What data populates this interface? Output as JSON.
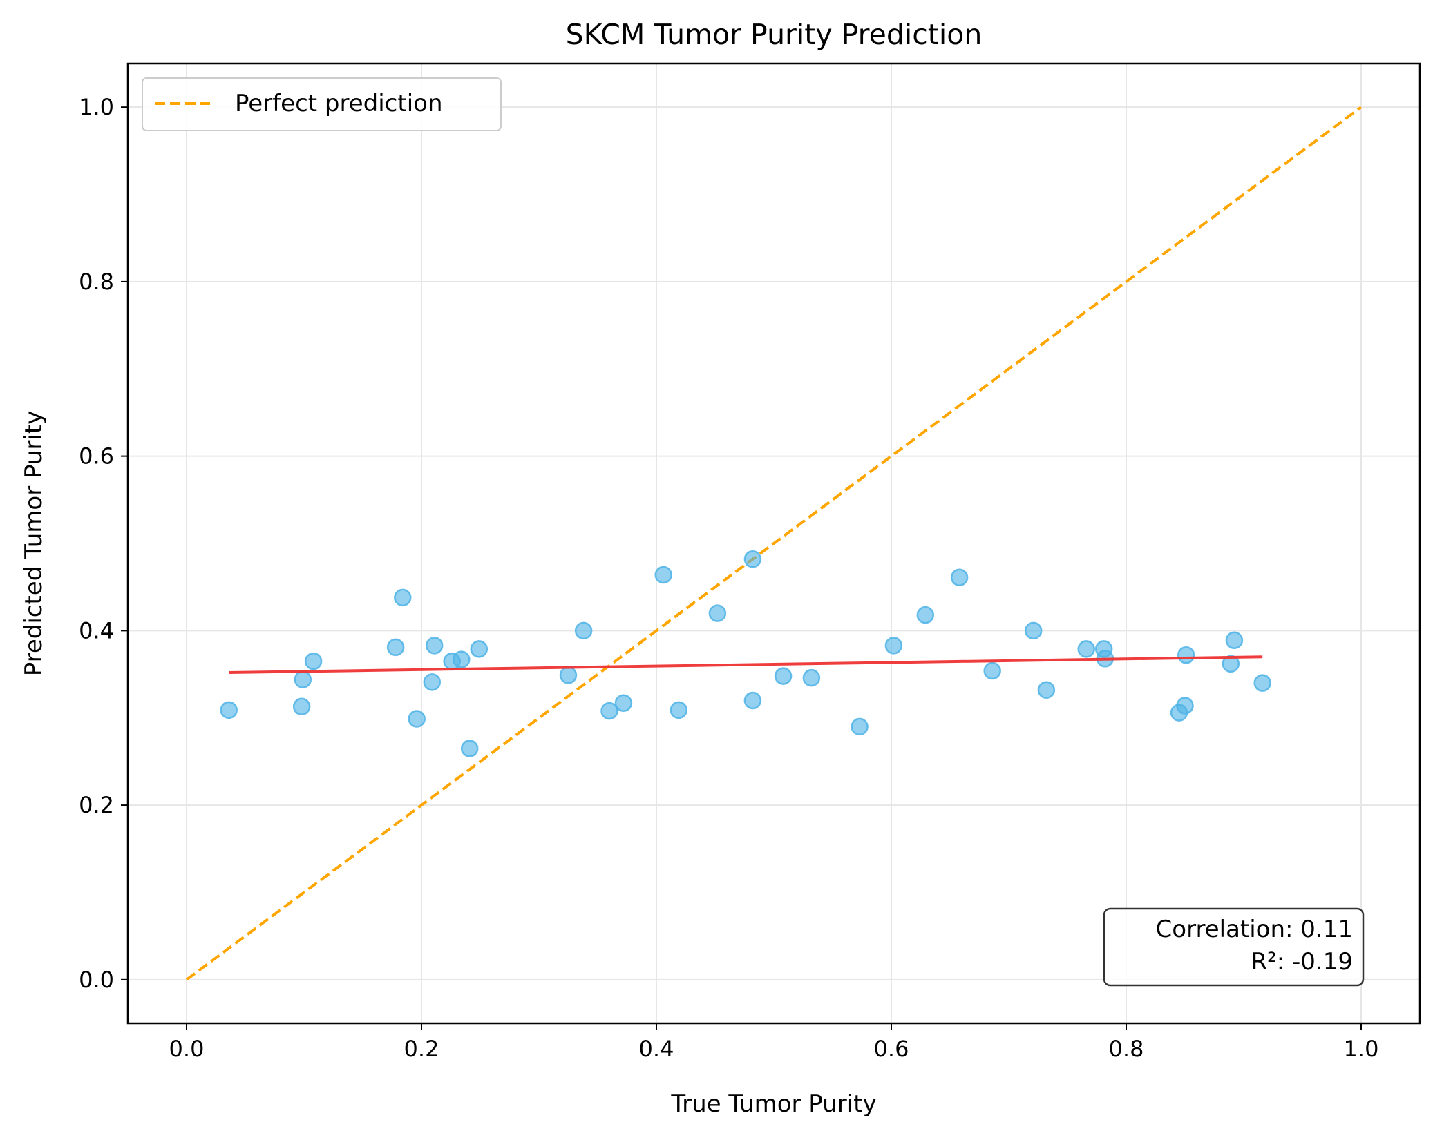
{
  "chart_data": {
    "type": "scatter",
    "title": "SKCM Tumor Purity Prediction",
    "xlabel": "True Tumor Purity",
    "ylabel": "Predicted Tumor Purity",
    "xlim": [
      -0.05,
      1.05
    ],
    "ylim": [
      -0.05,
      1.05
    ],
    "x_ticks": [
      0.0,
      0.2,
      0.4,
      0.6,
      0.8,
      1.0
    ],
    "y_ticks": [
      0.0,
      0.2,
      0.4,
      0.6,
      0.8,
      1.0
    ],
    "x_tick_labels": [
      "0.0",
      "0.2",
      "0.4",
      "0.6",
      "0.8",
      "1.0"
    ],
    "y_tick_labels": [
      "0.0",
      "0.2",
      "0.4",
      "0.6",
      "0.8",
      "1.0"
    ],
    "grid": true,
    "legend": {
      "position": "upper-left",
      "entries": [
        "Perfect prediction"
      ]
    },
    "points": [
      {
        "x": 0.036,
        "y": 0.309
      },
      {
        "x": 0.098,
        "y": 0.313
      },
      {
        "x": 0.099,
        "y": 0.344
      },
      {
        "x": 0.108,
        "y": 0.365
      },
      {
        "x": 0.178,
        "y": 0.381
      },
      {
        "x": 0.184,
        "y": 0.438
      },
      {
        "x": 0.196,
        "y": 0.299
      },
      {
        "x": 0.209,
        "y": 0.341
      },
      {
        "x": 0.211,
        "y": 0.383
      },
      {
        "x": 0.226,
        "y": 0.365
      },
      {
        "x": 0.234,
        "y": 0.367
      },
      {
        "x": 0.241,
        "y": 0.265
      },
      {
        "x": 0.249,
        "y": 0.379
      },
      {
        "x": 0.325,
        "y": 0.349
      },
      {
        "x": 0.338,
        "y": 0.4
      },
      {
        "x": 0.36,
        "y": 0.308
      },
      {
        "x": 0.372,
        "y": 0.317
      },
      {
        "x": 0.406,
        "y": 0.464
      },
      {
        "x": 0.419,
        "y": 0.309
      },
      {
        "x": 0.452,
        "y": 0.42
      },
      {
        "x": 0.482,
        "y": 0.482
      },
      {
        "x": 0.482,
        "y": 0.32
      },
      {
        "x": 0.508,
        "y": 0.348
      },
      {
        "x": 0.532,
        "y": 0.346
      },
      {
        "x": 0.573,
        "y": 0.29
      },
      {
        "x": 0.602,
        "y": 0.383
      },
      {
        "x": 0.629,
        "y": 0.418
      },
      {
        "x": 0.658,
        "y": 0.461
      },
      {
        "x": 0.686,
        "y": 0.354
      },
      {
        "x": 0.721,
        "y": 0.4
      },
      {
        "x": 0.732,
        "y": 0.332
      },
      {
        "x": 0.766,
        "y": 0.379
      },
      {
        "x": 0.781,
        "y": 0.379
      },
      {
        "x": 0.782,
        "y": 0.368
      },
      {
        "x": 0.845,
        "y": 0.306
      },
      {
        "x": 0.85,
        "y": 0.314
      },
      {
        "x": 0.851,
        "y": 0.372
      },
      {
        "x": 0.889,
        "y": 0.362
      },
      {
        "x": 0.892,
        "y": 0.389
      },
      {
        "x": 0.916,
        "y": 0.34
      }
    ],
    "point_color": "#4db3e6",
    "reference_line": {
      "x": [
        0.0,
        1.0
      ],
      "y": [
        0.0,
        1.0
      ],
      "color": "#ffa500",
      "style": "dashed",
      "label": "Perfect prediction"
    },
    "fit_line": {
      "x": [
        0.036,
        0.916
      ],
      "y": [
        0.352,
        0.37
      ],
      "color": "#ee3333"
    },
    "annotation": {
      "lines": [
        "Correlation: 0.11",
        "R²: -0.19"
      ],
      "position": "lower-right"
    }
  }
}
